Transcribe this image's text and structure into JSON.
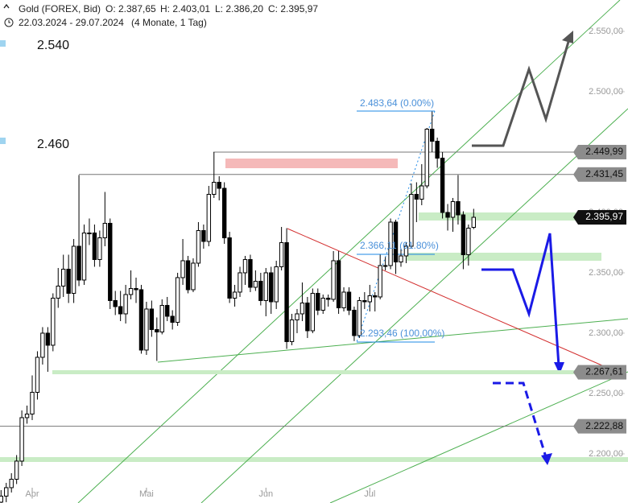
{
  "chart_data": {
    "type": "candlestick",
    "title": "Gold (FOREX, Bid)",
    "ohlc_header": [
      "O: 2.387,65",
      "H: 2.403,01",
      "L: 2.386,20",
      "C: 2.395,97"
    ],
    "subtitle": "22.03.2024 - 29.07.2024",
    "period": "(4 Monate, 1 Tag)",
    "categories": [
      null,
      null,
      null,
      null,
      null,
      null,
      "Apr",
      null,
      null,
      null,
      null,
      null,
      null,
      null,
      null,
      null,
      null,
      null,
      null,
      null,
      null,
      null,
      null,
      null,
      null,
      null,
      null,
      null,
      "Mai",
      null,
      null,
      null,
      null,
      null,
      null,
      null,
      null,
      null,
      null,
      null,
      null,
      null,
      null,
      null,
      null,
      null,
      null,
      null,
      null,
      null,
      null,
      "Jun",
      null,
      null,
      null,
      null,
      null,
      null,
      null,
      null,
      null,
      null,
      null,
      null,
      null,
      null,
      null,
      null,
      null,
      null,
      null,
      "Jul",
      null,
      null,
      null,
      null,
      null,
      null,
      null,
      null,
      null,
      null,
      null,
      null,
      null,
      null,
      null,
      null,
      null,
      null,
      null,
      null
    ],
    "open": [
      2160,
      2165,
      2172,
      2179,
      2194,
      2230,
      2233,
      2251,
      2280,
      2300,
      2290,
      2329,
      2339,
      2353,
      2333,
      2372,
      2344,
      2383,
      2383,
      2361,
      2379,
      2391,
      2327,
      2322,
      2316,
      2332,
      2337,
      2336,
      2286,
      2320,
      2303,
      2301,
      2323,
      2314,
      2309,
      2346,
      2360,
      2336,
      2358,
      2385,
      2376,
      2415,
      2425,
      2420,
      2379,
      2329,
      2334,
      2350,
      2361,
      2338,
      2343,
      2327,
      2350,
      2326,
      2355,
      2375,
      2293,
      2311,
      2316,
      2325,
      2302,
      2333,
      2319,
      2329,
      2328,
      2360,
      2321,
      2334,
      2319,
      2298,
      2327,
      2326,
      2331,
      2330,
      2356,
      2356,
      2392,
      2359,
      2364,
      2372,
      2415,
      2411,
      2422,
      2469,
      2459,
      2445,
      2400,
      2396,
      2409,
      2398,
      2365,
      2387.65
    ],
    "high": [
      2170,
      2176,
      2184,
      2199,
      2236,
      2240,
      2265,
      2285,
      2305,
      2305,
      2333,
      2354,
      2365,
      2365,
      2378,
      2431,
      2390,
      2395,
      2390,
      2385,
      2417,
      2395,
      2335,
      2335,
      2340,
      2352,
      2346,
      2340,
      2326,
      2327,
      2313,
      2328,
      2330,
      2319,
      2350,
      2378,
      2364,
      2362,
      2392,
      2390,
      2422,
      2450,
      2430,
      2425,
      2384,
      2340,
      2355,
      2364,
      2365,
      2352,
      2350,
      2354,
      2355,
      2360,
      2388,
      2387,
      2316,
      2320,
      2342,
      2330,
      2337,
      2337,
      2332,
      2332,
      2368,
      2368,
      2338,
      2338,
      2322,
      2330,
      2334,
      2340,
      2334,
      2365,
      2363,
      2395,
      2394,
      2370,
      2375,
      2424,
      2425,
      2440,
      2470,
      2483.64,
      2462,
      2450,
      2407,
      2412,
      2431,
      2401,
      2390,
      2403.01
    ],
    "low": [
      2156,
      2160,
      2168,
      2175,
      2190,
      2225,
      2228,
      2245,
      2274,
      2268,
      2285,
      2321,
      2330,
      2325,
      2325,
      2339,
      2340,
      2373,
      2355,
      2355,
      2372,
      2320,
      2315,
      2310,
      2308,
      2328,
      2325,
      2283,
      2282,
      2297,
      2277,
      2299,
      2310,
      2303,
      2306,
      2340,
      2333,
      2334,
      2355,
      2370,
      2372,
      2412,
      2410,
      2374,
      2325,
      2322,
      2330,
      2340,
      2334,
      2335,
      2323,
      2314,
      2316,
      2320,
      2352,
      2287,
      2290,
      2300,
      2310,
      2296,
      2300,
      2315,
      2316,
      2322,
      2326,
      2316,
      2318,
      2315,
      2293.46,
      2296,
      2320,
      2318,
      2318,
      2328,
      2352,
      2353,
      2349,
      2355,
      2358,
      2370,
      2392,
      2406,
      2420,
      2450,
      2437,
      2395,
      2385,
      2384,
      2390,
      2353,
      2356,
      2386.2
    ],
    "close": [
      2165,
      2172,
      2179,
      2194,
      2230,
      2233,
      2251,
      2280,
      2300,
      2290,
      2329,
      2339,
      2353,
      2333,
      2372,
      2344,
      2383,
      2383,
      2361,
      2379,
      2391,
      2327,
      2322,
      2316,
      2332,
      2337,
      2336,
      2286,
      2320,
      2303,
      2301,
      2323,
      2314,
      2309,
      2346,
      2360,
      2336,
      2358,
      2385,
      2376,
      2415,
      2425,
      2420,
      2379,
      2329,
      2334,
      2350,
      2361,
      2338,
      2343,
      2327,
      2350,
      2326,
      2355,
      2375,
      2293,
      2311,
      2316,
      2325,
      2302,
      2333,
      2319,
      2329,
      2328,
      2360,
      2321,
      2334,
      2319,
      2298,
      2327,
      2326,
      2331,
      2330,
      2356,
      2356,
      2392,
      2359,
      2364,
      2372,
      2415,
      2411,
      2422,
      2469,
      2459,
      2445,
      2400,
      2396,
      2409,
      2398,
      2365,
      2387,
      2395.97
    ],
    "up_color": "#ffffff",
    "down_color": "#000000",
    "ylim": [
      2159.3,
      2576
    ],
    "yticks": [
      {
        "value": 2200,
        "label": "2.200,00"
      },
      {
        "value": 2250,
        "label": "2.250,00"
      },
      {
        "value": 2300,
        "label": "2.300,00"
      },
      {
        "value": 2350,
        "label": "2.350,00"
      },
      {
        "value": 2400,
        "label": "2.400,00"
      },
      {
        "value": 2500,
        "label": "2.500,00"
      },
      {
        "value": 2550,
        "label": "2.550,00"
      }
    ],
    "price_lines": [
      {
        "value": 2449.99,
        "label": "2.449,99"
      },
      {
        "value": 2431.45,
        "label": "2.431,45"
      },
      {
        "value": 2267.61,
        "label": "2.267,61"
      },
      {
        "value": 2222.88,
        "label": "2.222,88"
      }
    ],
    "last_price": {
      "value": 2395.97,
      "label": "2.395,97"
    },
    "annotations": [
      "2.540",
      "2.460",
      "2.483,64 (0.00%)",
      "2.366,11 (61.80%)",
      "2.293,46 (100,00%)"
    ]
  }
}
